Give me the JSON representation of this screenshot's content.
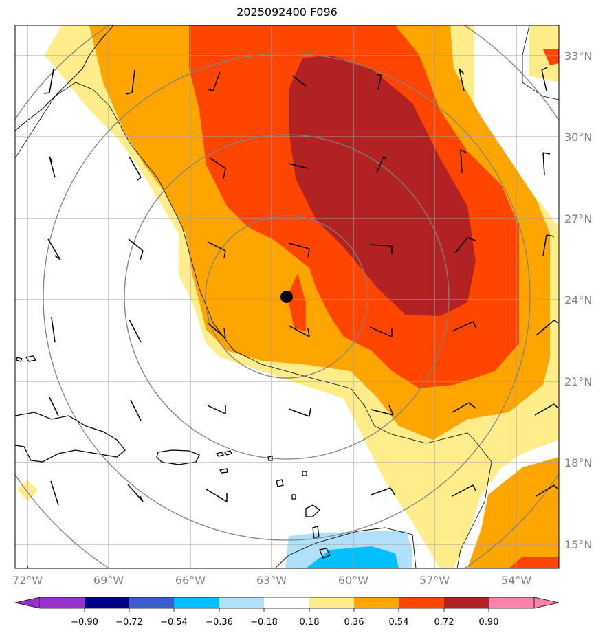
{
  "title": "2025092400 F096",
  "map": {
    "lon_range": [
      -72.3,
      -52.3
    ],
    "lat_range": [
      14.2,
      34.0
    ],
    "center_marker": {
      "lon": -62.5,
      "lat": 24.1
    },
    "range_rings_deg": [
      3,
      6,
      9,
      12
    ],
    "lon_labels": [
      "72°W",
      "69°W",
      "66°W",
      "63°W",
      "60°W",
      "57°W",
      "54°W"
    ],
    "lat_labels": [
      "33°N",
      "30°N",
      "27°N",
      "24°N",
      "21°N",
      "18°N",
      "15°N"
    ],
    "gridline_color": "#a0a0a0"
  },
  "colorbar": {
    "tick_labels": [
      "−0.90",
      "−0.72",
      "−0.54",
      "−0.36",
      "−0.18",
      "0.18",
      "0.36",
      "0.54",
      "0.72",
      "0.90"
    ],
    "colors": [
      "#9932cc",
      "#00008b",
      "#3a5fcd",
      "#00bfff",
      "#b0e0fa",
      "#ffffff",
      "#ffec8b",
      "#ffa500",
      "#ff4500",
      "#b22222",
      "#ff82ab"
    ]
  }
}
